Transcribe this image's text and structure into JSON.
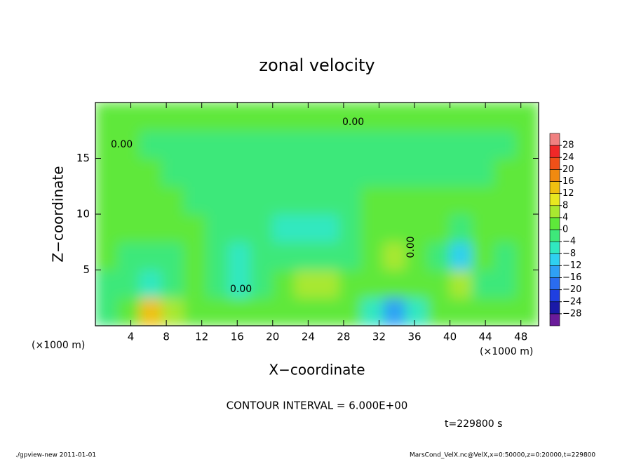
{
  "chart_data": {
    "type": "contour",
    "title": "zonal velocity",
    "xlabel": "X−coordinate",
    "ylabel": "Z−coordinate",
    "x_unit_label": "(×1000 m)",
    "contour_interval": "CONTOUR INTERVAL = 6.000E+00",
    "time_label": "t=229800 s",
    "footer_left": "./gpview-new  2011-01-01",
    "footer_right": "MarsCond_VelX.nc@VelX,x=0:50000,z=0:20000,t=229800",
    "contour_labels": [
      "0.00",
      "0.00",
      "0.00",
      "0.00"
    ],
    "xlim": [
      0,
      50
    ],
    "ylim": [
      0,
      20
    ],
    "xticks": [
      4,
      8,
      12,
      16,
      20,
      24,
      28,
      32,
      36,
      40,
      44,
      48
    ],
    "yticks": [
      5,
      10,
      15
    ],
    "x": [
      1.25,
      3.75,
      6.25,
      8.75,
      11.25,
      13.75,
      16.25,
      18.75,
      21.25,
      23.75,
      26.25,
      28.75,
      31.25,
      33.75,
      36.25,
      38.75,
      41.25,
      43.75,
      46.25,
      48.75
    ],
    "y": [
      1.25,
      3.75,
      6.25,
      8.75,
      11.25,
      13.75,
      16.25,
      18.75
    ],
    "z": [
      [
        -1,
        3,
        12,
        6,
        1,
        0,
        2,
        1,
        2,
        3,
        3,
        2,
        -6,
        -14,
        -6,
        1,
        2,
        2,
        1,
        2
      ],
      [
        -1,
        -4,
        -6,
        -3,
        0,
        -3,
        -5,
        -3,
        2,
        4,
        6,
        3,
        0,
        2,
        1,
        2,
        4,
        -1,
        -4,
        0
      ],
      [
        1,
        -1,
        -2,
        -1,
        1,
        -2,
        -5,
        -4,
        -1,
        -3,
        -4,
        -1,
        3,
        6,
        3,
        -2,
        -10,
        0,
        -3,
        1
      ],
      [
        2,
        2,
        1,
        1,
        0,
        -1,
        -2,
        -2,
        -5,
        -8,
        -7,
        -2,
        1,
        2,
        1,
        0,
        -1,
        1,
        1,
        1
      ],
      [
        1,
        1,
        1,
        0,
        -1,
        -1,
        -1,
        -2,
        -3,
        -4,
        -3,
        -1,
        0,
        1,
        1,
        1,
        1,
        1,
        1,
        1
      ],
      [
        1,
        1,
        0,
        -1,
        -1,
        -1,
        -1,
        -1,
        -1,
        -2,
        -1,
        -1,
        -1,
        -1,
        -1,
        -1,
        -1,
        -1,
        0,
        1
      ],
      [
        1,
        0,
        -1,
        -1,
        -1,
        -1,
        -1,
        -1,
        -1,
        -1,
        -1,
        -1,
        -1,
        -1,
        -1,
        -1,
        -1,
        -1,
        -1,
        0
      ],
      [
        1,
        1,
        1,
        1,
        1,
        1,
        1,
        1,
        1,
        1,
        1,
        1,
        1,
        1,
        1,
        1,
        1,
        1,
        1,
        1
      ]
    ],
    "levels": [
      {
        "value": -28,
        "label": "−28"
      },
      {
        "value": -24,
        "label": "−24"
      },
      {
        "value": -20,
        "label": "−20"
      },
      {
        "value": -16,
        "label": "−16"
      },
      {
        "value": -12,
        "label": "−12"
      },
      {
        "value": -8,
        "label": "−8"
      },
      {
        "value": -4,
        "label": "−4"
      },
      0,
      4,
      8,
      12,
      16,
      20,
      24,
      28
    ],
    "colors": [
      "#6a1b9a",
      "#1a1aa8",
      "#1f3fe0",
      "#2a6cf0",
      "#2fa0f5",
      "#2fd0f0",
      "#30e8c0",
      "#3ee87a",
      "#5ee83a",
      "#a8e830",
      "#e8e820",
      "#f0c010",
      "#f08a10",
      "#f05018",
      "#f02828",
      "#f08080"
    ]
  }
}
